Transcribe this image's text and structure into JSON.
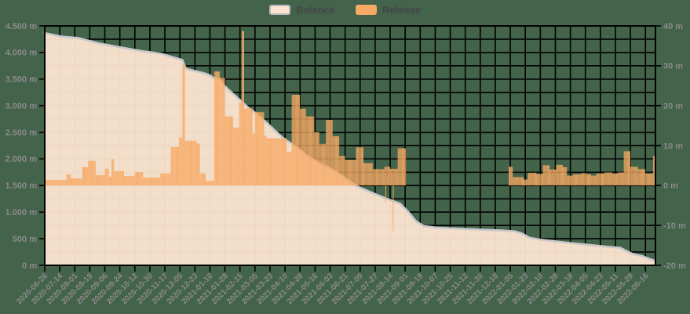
{
  "legend": {
    "items": [
      {
        "label": "Balance",
        "series_type": "area"
      },
      {
        "label": "Release",
        "series_type": "bar"
      }
    ]
  },
  "colors": {
    "background": "#43634a",
    "grid_line": "#000000",
    "plot_border": "#000000",
    "balance_area_fill": "#fce5d0",
    "balance_line": "#c7c7cc",
    "release_bar": "#f7aa64",
    "axis_text": "#8e8a8e",
    "legend_text": "#46464c",
    "balance_swatch_border": "#bbbbbf"
  },
  "chart_data": {
    "type": "mixed",
    "title": "",
    "grid": true,
    "legend_position": "top-center",
    "x_axis": {
      "type": "time",
      "start_date": "2020-06-26",
      "tick_interval_days": 18,
      "total_days": 732,
      "tick_labels": [
        "2020-06-26",
        "2020-07-14",
        "2020-08-01",
        "2020-08-19",
        "2020-09-06",
        "2020-09-24",
        "2020-10-12",
        "2020-10-30",
        "2020-11-17",
        "2020-12-05",
        "2020-12-23",
        "2021-01-10",
        "2021-01-28",
        "2021-02-15",
        "2021-03-05",
        "2021-03-23",
        "2021-04-10",
        "2021-04-28",
        "2021-05-16",
        "2021-06-03",
        "2021-06-21",
        "2021-07-09",
        "2021-07-27",
        "2021-08-14",
        "2021-09-01",
        "2021-09-19",
        "2021-10-07",
        "2021-10-25",
        "2021-11-12",
        "2021-11-30",
        "2021-12-18",
        "2022-01-05",
        "2022-01-23",
        "2022-02-10",
        "2022-02-28",
        "2022-03-18",
        "2022-04-05",
        "2022-04-23",
        "2022-05-11",
        "2022-05-29",
        "2022-06-16"
      ]
    },
    "y_axis_left": {
      "unit": "m",
      "min": 0,
      "max": 4500,
      "label_step": 500,
      "grid_step": 250,
      "labels": [
        "0 m",
        "500 m",
        "1.000 m",
        "1.500 m",
        "2.000 m",
        "2.500 m",
        "3.000 m",
        "3.500 m",
        "4.000 m",
        "4.500 m"
      ]
    },
    "y_axis_right": {
      "unit": "m",
      "min": -20,
      "max": 40,
      "label_step": 10,
      "labels": [
        "-20 m",
        "-10 m",
        "0 m",
        "10 m",
        "20 m",
        "30 m",
        "40 m"
      ]
    },
    "series": [
      {
        "name": "Balance",
        "type": "area-line",
        "axis": "left",
        "points_format": "[day_offset_from_2020-06-26, value_m]",
        "points": [
          [
            0,
            4365
          ],
          [
            20,
            4300
          ],
          [
            40,
            4275
          ],
          [
            63,
            4180
          ],
          [
            88,
            4105
          ],
          [
            117,
            4025
          ],
          [
            139,
            3980
          ],
          [
            165,
            3860
          ],
          [
            169,
            3700
          ],
          [
            177,
            3665
          ],
          [
            189,
            3620
          ],
          [
            197,
            3580
          ],
          [
            203,
            3520
          ],
          [
            210,
            3490
          ],
          [
            215,
            3380
          ],
          [
            224,
            3250
          ],
          [
            238,
            3050
          ],
          [
            245,
            2950
          ],
          [
            252,
            2870
          ],
          [
            266,
            2680
          ],
          [
            285,
            2400
          ],
          [
            299,
            2250
          ],
          [
            318,
            2020
          ],
          [
            332,
            1900
          ],
          [
            346,
            1790
          ],
          [
            360,
            1640
          ],
          [
            374,
            1490
          ],
          [
            393,
            1360
          ],
          [
            407,
            1270
          ],
          [
            426,
            1160
          ],
          [
            436,
            1000
          ],
          [
            445,
            830
          ],
          [
            454,
            740
          ],
          [
            469,
            710
          ],
          [
            511,
            680
          ],
          [
            549,
            655
          ],
          [
            563,
            640
          ],
          [
            572,
            600
          ],
          [
            581,
            520
          ],
          [
            596,
            480
          ],
          [
            624,
            430
          ],
          [
            643,
            400
          ],
          [
            671,
            355
          ],
          [
            690,
            330
          ],
          [
            696,
            280
          ],
          [
            704,
            220
          ],
          [
            718,
            165
          ],
          [
            727,
            110
          ],
          [
            732,
            85
          ]
        ]
      },
      {
        "name": "Release",
        "type": "bar",
        "axis": "right",
        "segments_format": "[start_day, end_day, height_m] (daily bars)",
        "segments": [
          [
            0,
            26,
            1.4
          ],
          [
            26,
            31,
            2.8
          ],
          [
            31,
            45,
            1.8
          ],
          [
            45,
            52,
            4.6
          ],
          [
            52,
            61,
            6.2
          ],
          [
            61,
            72,
            2.6
          ],
          [
            72,
            77,
            4.2
          ],
          [
            77,
            80,
            2.2
          ],
          [
            80,
            83,
            6.6
          ],
          [
            83,
            95,
            3.6
          ],
          [
            95,
            108,
            2.4
          ],
          [
            108,
            118,
            3.4
          ],
          [
            118,
            138,
            2.0
          ],
          [
            138,
            151,
            3.0
          ],
          [
            151,
            161,
            9.7
          ],
          [
            161,
            165,
            12.0
          ],
          [
            165,
            168,
            30.3
          ],
          [
            168,
            182,
            11.2
          ],
          [
            182,
            186,
            10.5
          ],
          [
            186,
            193,
            3.0
          ],
          [
            193,
            203,
            1.2
          ],
          [
            203,
            210,
            28.6
          ],
          [
            210,
            216,
            27.0
          ],
          [
            216,
            226,
            17.3
          ],
          [
            226,
            233,
            14.5
          ],
          [
            233,
            236,
            20.8
          ],
          [
            236,
            239,
            38.7
          ],
          [
            239,
            249,
            19.3
          ],
          [
            249,
            252,
            13.0
          ],
          [
            252,
            263,
            18.4
          ],
          [
            263,
            266,
            12.5
          ],
          [
            266,
            290,
            11.8
          ],
          [
            290,
            296,
            8.4
          ],
          [
            296,
            306,
            22.7
          ],
          [
            306,
            313,
            19.2
          ],
          [
            313,
            323,
            17.3
          ],
          [
            323,
            329,
            13.4
          ],
          [
            329,
            337,
            10.4
          ],
          [
            337,
            345,
            16.4
          ],
          [
            345,
            353,
            12.4
          ],
          [
            353,
            360,
            7.4
          ],
          [
            360,
            373,
            6.4
          ],
          [
            373,
            382,
            9.6
          ],
          [
            382,
            393,
            5.6
          ],
          [
            393,
            407,
            4.1
          ],
          [
            407,
            414,
            4.7
          ],
          [
            414,
            423,
            4.2
          ],
          [
            423,
            433,
            9.3
          ],
          [
            556,
            561,
            4.7
          ],
          [
            561,
            574,
            2.1
          ],
          [
            574,
            579,
            1.5
          ],
          [
            579,
            589,
            3.2
          ],
          [
            589,
            597,
            2.9
          ],
          [
            597,
            605,
            5.1
          ],
          [
            605,
            613,
            4.0
          ],
          [
            613,
            621,
            5.2
          ],
          [
            621,
            626,
            4.6
          ],
          [
            626,
            633,
            2.5
          ],
          [
            633,
            643,
            2.8
          ],
          [
            643,
            649,
            3.1
          ],
          [
            649,
            655,
            2.8
          ],
          [
            655,
            661,
            2.5
          ],
          [
            661,
            671,
            3.0
          ],
          [
            671,
            680,
            3.3
          ],
          [
            680,
            687,
            3.0
          ],
          [
            687,
            694,
            3.3
          ],
          [
            694,
            702,
            8.6
          ],
          [
            702,
            711,
            4.7
          ],
          [
            711,
            720,
            4.1
          ],
          [
            720,
            729,
            3.0
          ],
          [
            729,
            732,
            7.4
          ]
        ],
        "negative_spikes": [
          [
            408,
            -4.2
          ],
          [
            417,
            -11.4
          ]
        ]
      }
    ]
  }
}
